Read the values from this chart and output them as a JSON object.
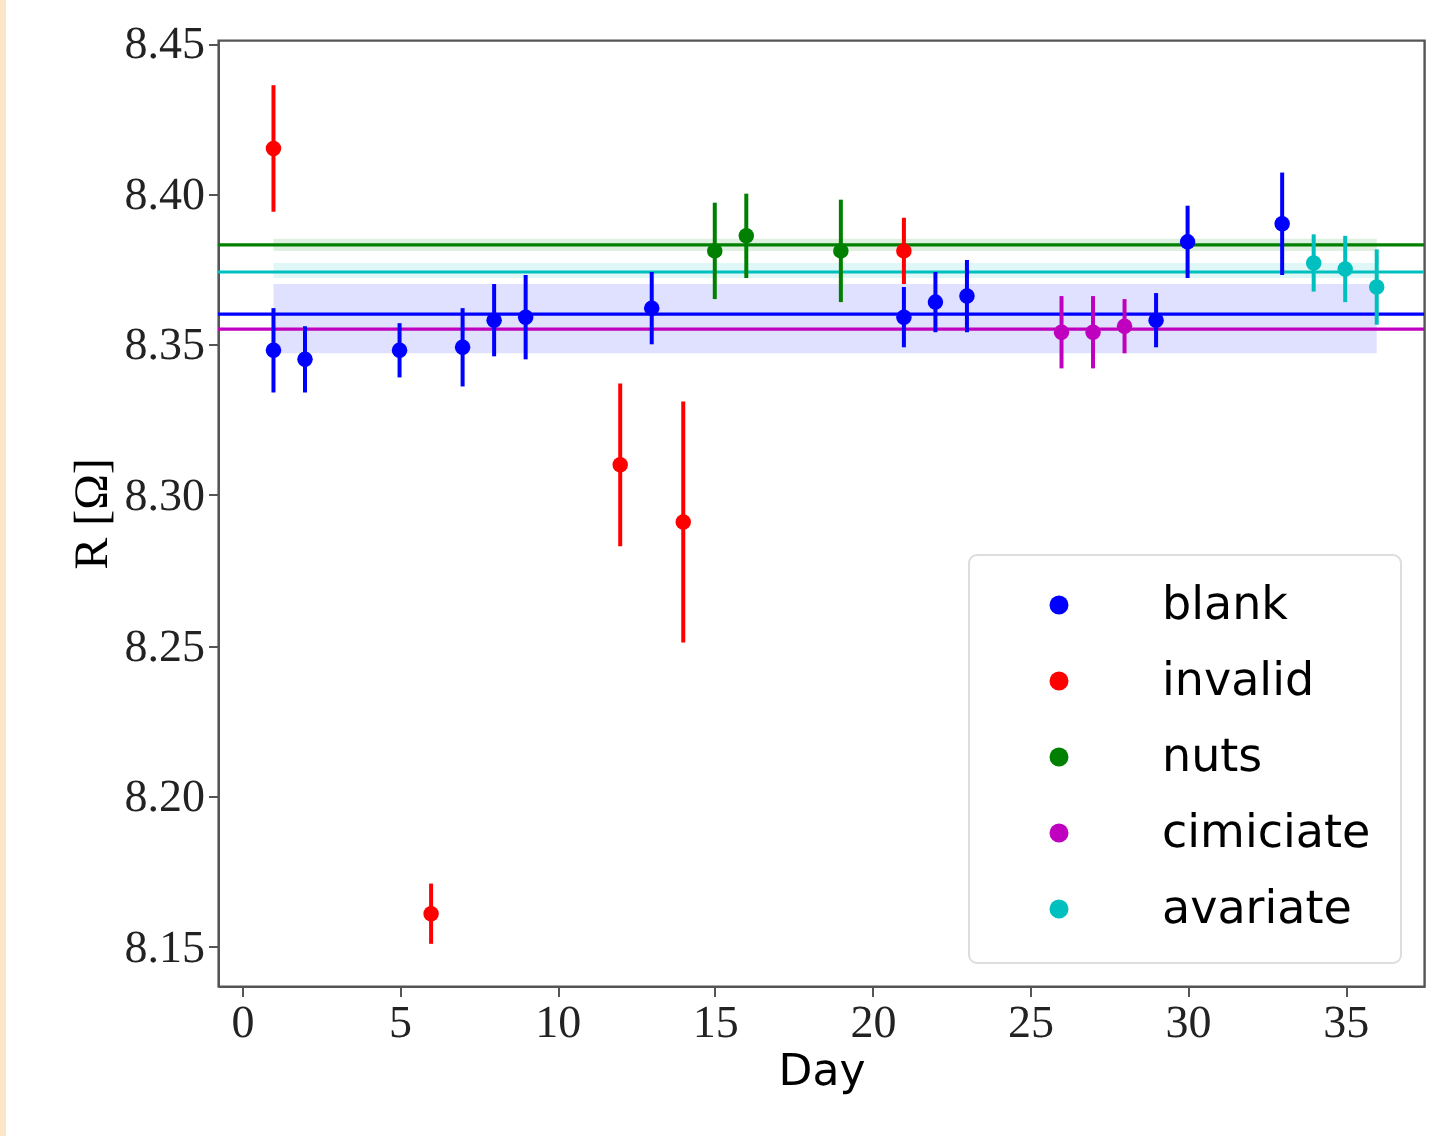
{
  "chart_data": {
    "type": "scatter",
    "xlabel": "Day",
    "ylabel": "R [Ω]",
    "xlim": [
      -0.76,
      37.5
    ],
    "ylim": [
      8.137,
      8.451
    ],
    "xticks": [
      0,
      5,
      10,
      15,
      20,
      25,
      30,
      35
    ],
    "yticks": [
      8.15,
      {
        "value": 8.2,
        "label": "8.20"
      },
      8.25,
      {
        "value": 8.3,
        "label": "8.30"
      },
      8.35,
      {
        "value": 8.4,
        "label": "8.40"
      },
      8.45
    ],
    "grid": false,
    "legend": "bottom right",
    "marker": "circle",
    "series": [
      {
        "name": "blank",
        "color": "#0000ff",
        "x": [
          1,
          2,
          5,
          7,
          8,
          9,
          13,
          21,
          22,
          23,
          29,
          30,
          33
        ],
        "values": [
          8.348,
          8.345,
          8.348,
          8.349,
          8.358,
          8.359,
          8.362,
          8.359,
          8.364,
          8.366,
          8.358,
          8.384,
          8.39
        ],
        "errors": [
          0.014,
          0.011,
          0.009,
          0.013,
          0.012,
          0.014,
          0.012,
          0.01,
          0.01,
          0.012,
          0.009,
          0.012,
          0.017
        ]
      },
      {
        "name": "invalid",
        "color": "#ff0000",
        "x": [
          1,
          6,
          12,
          14,
          21
        ],
        "values": [
          8.415,
          8.161,
          8.31,
          8.291,
          8.381
        ],
        "errors": [
          0.021,
          0.01,
          0.027,
          0.04,
          0.011
        ]
      },
      {
        "name": "nuts",
        "color": "#008000",
        "x": [
          15,
          16,
          19
        ],
        "values": [
          8.381,
          8.386,
          8.381
        ],
        "errors": [
          0.016,
          0.014,
          0.017
        ]
      },
      {
        "name": "cimiciate",
        "color": "#bf00bf",
        "x": [
          26,
          27,
          28
        ],
        "values": [
          8.354,
          8.354,
          8.356
        ],
        "errors": [
          0.012,
          0.012,
          0.009
        ]
      },
      {
        "name": "avariate",
        "color": "#00bfbf",
        "x": [
          34,
          35,
          36
        ],
        "values": [
          8.377,
          8.375,
          8.369
        ],
        "errors": [
          0.0095,
          0.011,
          0.0125
        ]
      }
    ],
    "ref_lines": [
      {
        "axis": "y",
        "value": 8.383,
        "color": "#008000"
      },
      {
        "axis": "y",
        "value": 8.374,
        "color": "#00bfbf"
      },
      {
        "axis": "y",
        "value": 8.36,
        "color": "#0000ff"
      },
      {
        "axis": "y",
        "value": 8.355,
        "color": "#bf00bf"
      }
    ],
    "bands": [
      {
        "axis": "y",
        "from": 8.347,
        "to": 8.37,
        "color": "#0000ff"
      },
      {
        "axis": "y",
        "from": 8.381,
        "to": 8.385,
        "color": "#008000"
      },
      {
        "axis": "y",
        "from": 8.372,
        "to": 8.377,
        "color": "#00bfbf"
      }
    ]
  }
}
